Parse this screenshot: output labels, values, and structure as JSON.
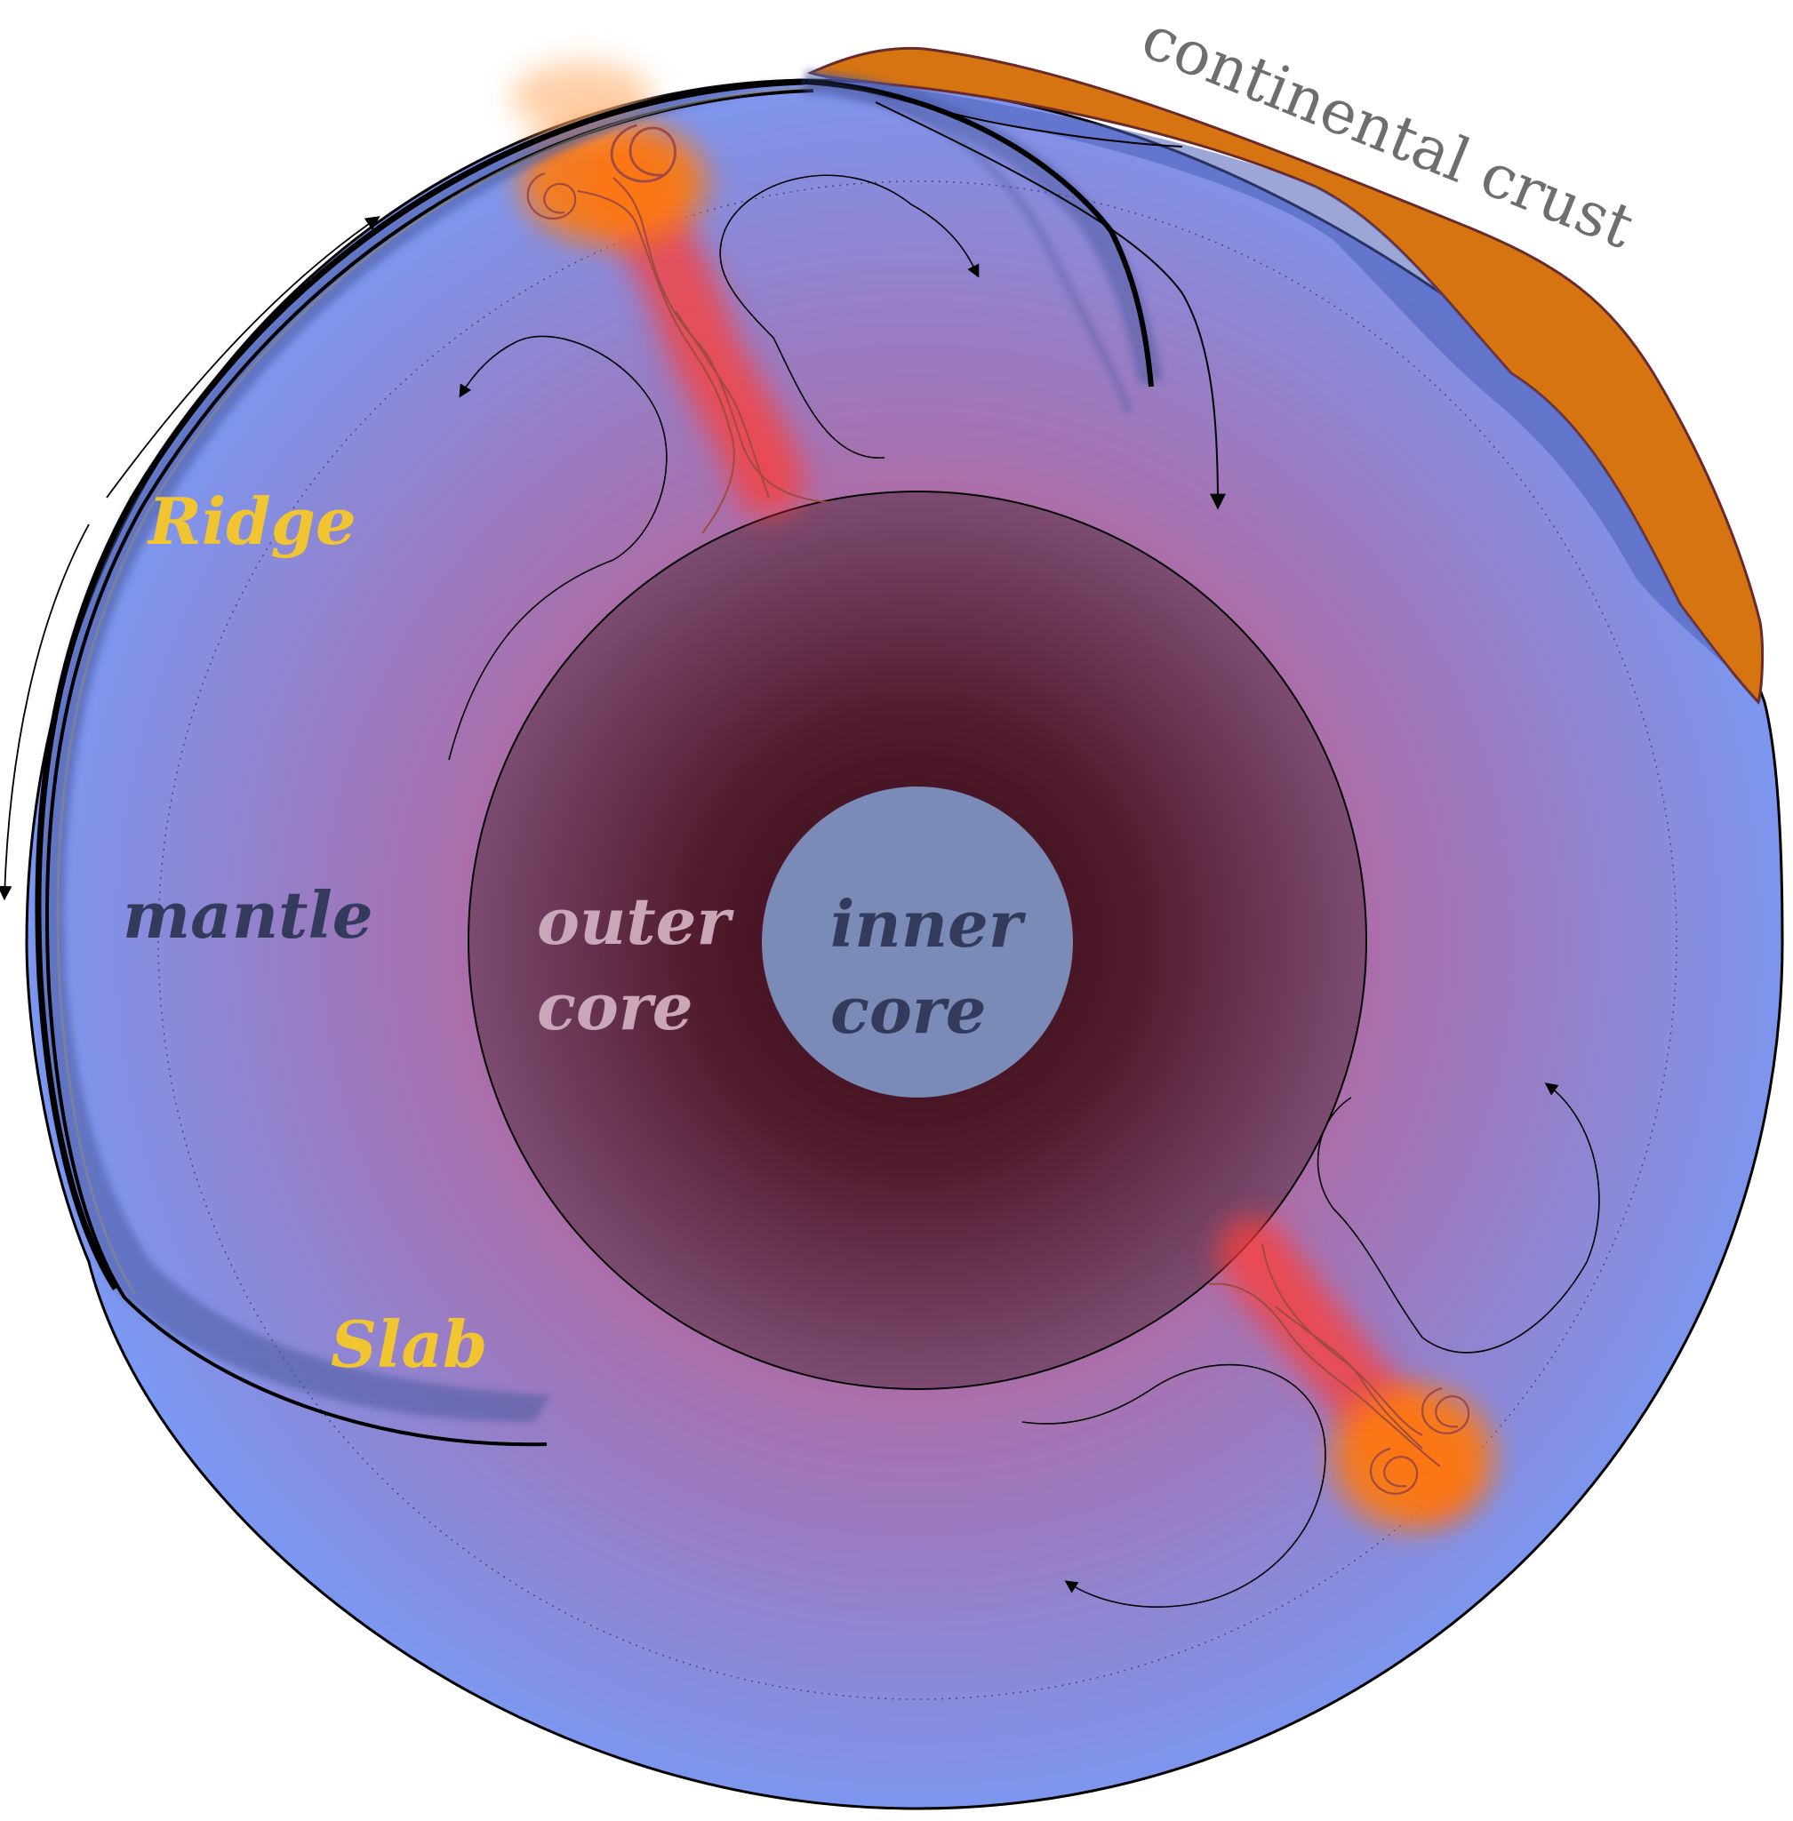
{
  "labels": {
    "continental_crust": "continental crust",
    "ridge": "Ridge",
    "slab": "Slab",
    "mantle": "mantle",
    "outer_core_line1": "outer",
    "outer_core_line2": "core",
    "inner_core_line1": "inner",
    "inner_core_line2": "core"
  },
  "colors": {
    "mantle_edge": "#7b98f2",
    "mantle_mid": "#9a7bc0",
    "mantle_hot": "#b06aa0",
    "outer_core_center": "#3a0f18",
    "outer_core_edge": "#7a4a6e",
    "inner_core": "#7b8bb8",
    "continental_crust": "#d67412",
    "plume_red": "#ff4a2a",
    "plume_orange": "#ff7a10",
    "yellow_label": "#f0c531",
    "dark_label": "#343a5c",
    "outer_label": "#c9a6b8",
    "gray_label": "#6e6e6e"
  },
  "icons": [
    "swirl-icon",
    "flow-arrow-icon"
  ]
}
